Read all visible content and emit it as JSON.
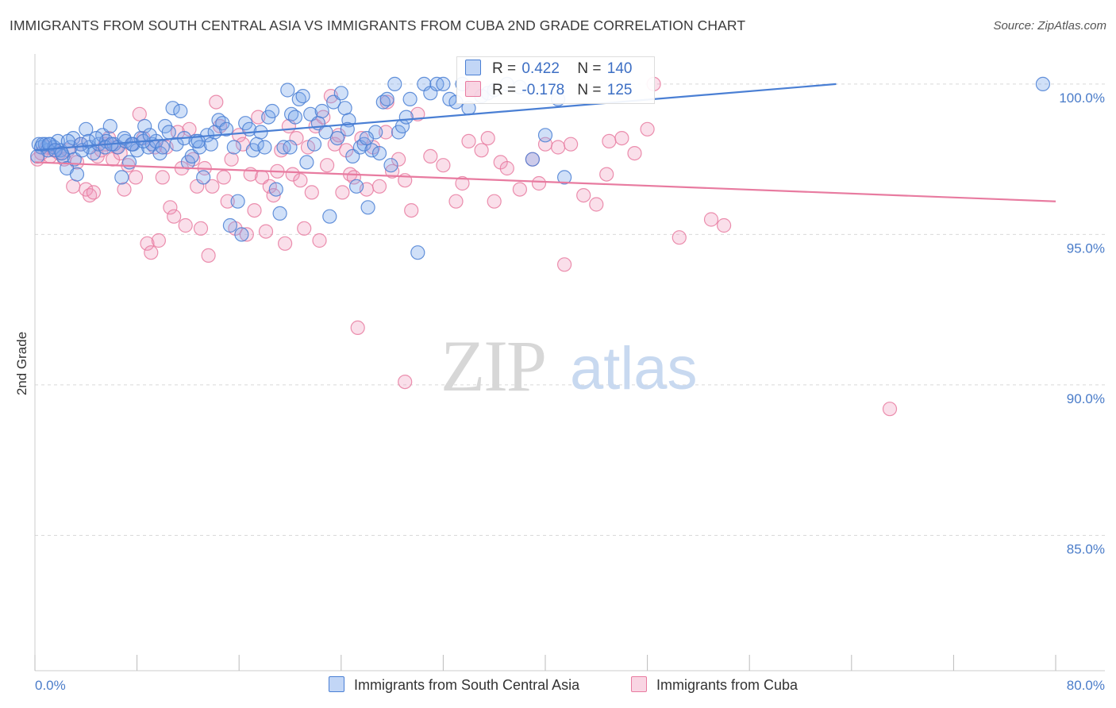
{
  "title": "IMMIGRANTS FROM SOUTH CENTRAL ASIA VS IMMIGRANTS FROM CUBA 2ND GRADE CORRELATION CHART",
  "source": "Source: ZipAtlas.com",
  "watermark": {
    "zip": "ZIP",
    "atlas": "atlas"
  },
  "colors": {
    "blue": "#4a7fd4",
    "blue_fill": "rgba(120,165,235,0.35)",
    "pink": "#e87ba0",
    "pink_fill": "rgba(240,150,185,0.30)",
    "tick_label": "#4a7cc9",
    "grid": "#d9d9d9"
  },
  "legend": {
    "rows": [
      {
        "r_label": "R = ",
        "r_value": "0.422",
        "n_label": "N = ",
        "n_value": "140"
      },
      {
        "r_label": "R = ",
        "r_value": "-0.178",
        "n_label": "N = ",
        "n_value": "125"
      }
    ]
  },
  "bottom_legend": [
    "Immigrants from South Central Asia",
    "Immigrants from Cuba"
  ],
  "chart_data": {
    "type": "scatter",
    "title": "IMMIGRANTS FROM SOUTH CENTRAL ASIA VS IMMIGRANTS FROM CUBA 2ND GRADE CORRELATION CHART",
    "xlabel": "",
    "ylabel": "2nd Grade",
    "xlim": [
      0,
      80
    ],
    "ylim": [
      80.5,
      101.0
    ],
    "x_tick_labels": [
      "0.0%",
      "80.0%"
    ],
    "y_ticks": [
      100,
      95,
      90,
      85
    ],
    "y_tick_labels": [
      "100.0%",
      "95.0%",
      "90.0%",
      "85.0%"
    ],
    "grid": true,
    "series": [
      {
        "name": "Immigrants from South Central Asia",
        "color": "#4a7fd4",
        "r": 0.422,
        "n": 140,
        "trend": [
          [
            0,
            97.8
          ],
          [
            62.8,
            100.0
          ]
        ],
        "points": [
          [
            0.3,
            98.0
          ],
          [
            0.5,
            97.9
          ],
          [
            0.8,
            98.0
          ],
          [
            1.0,
            97.8
          ],
          [
            1.2,
            98.0
          ],
          [
            1.5,
            97.9
          ],
          [
            1.8,
            98.1
          ],
          [
            2.0,
            97.8
          ],
          [
            2.2,
            97.6
          ],
          [
            2.5,
            97.2
          ],
          [
            2.8,
            97.9
          ],
          [
            3.0,
            98.2
          ],
          [
            3.3,
            97.0
          ],
          [
            3.6,
            98.0
          ],
          [
            4.0,
            98.5
          ],
          [
            4.3,
            97.9
          ],
          [
            4.6,
            97.7
          ],
          [
            5.0,
            98.0
          ],
          [
            5.3,
            98.3
          ],
          [
            5.6,
            98.1
          ],
          [
            5.9,
            98.6
          ],
          [
            6.2,
            98.0
          ],
          [
            6.5,
            97.9
          ],
          [
            6.8,
            96.9
          ],
          [
            7.1,
            98.1
          ],
          [
            7.4,
            97.4
          ],
          [
            7.7,
            98.0
          ],
          [
            8.0,
            97.8
          ],
          [
            8.3,
            98.2
          ],
          [
            8.6,
            98.6
          ],
          [
            8.9,
            97.9
          ],
          [
            9.2,
            98.0
          ],
          [
            9.5,
            98.1
          ],
          [
            9.8,
            97.7
          ],
          [
            10.2,
            98.6
          ],
          [
            10.5,
            98.4
          ],
          [
            10.8,
            99.2
          ],
          [
            11.1,
            98.0
          ],
          [
            11.4,
            99.1
          ],
          [
            11.7,
            98.2
          ],
          [
            12.0,
            97.4
          ],
          [
            12.3,
            97.6
          ],
          [
            12.6,
            98.1
          ],
          [
            12.9,
            97.9
          ],
          [
            13.2,
            96.9
          ],
          [
            13.5,
            98.3
          ],
          [
            13.8,
            98.0
          ],
          [
            14.1,
            98.4
          ],
          [
            14.4,
            98.8
          ],
          [
            14.7,
            98.7
          ],
          [
            15.0,
            98.5
          ],
          [
            15.3,
            95.3
          ],
          [
            15.6,
            97.9
          ],
          [
            15.9,
            96.1
          ],
          [
            16.2,
            95.0
          ],
          [
            16.5,
            98.7
          ],
          [
            16.8,
            98.5
          ],
          [
            17.1,
            97.8
          ],
          [
            17.4,
            98.0
          ],
          [
            17.7,
            98.4
          ],
          [
            18.0,
            97.9
          ],
          [
            18.3,
            98.9
          ],
          [
            18.6,
            99.1
          ],
          [
            18.9,
            96.5
          ],
          [
            19.2,
            95.7
          ],
          [
            19.5,
            97.9
          ],
          [
            19.8,
            99.8
          ],
          [
            20.1,
            99.0
          ],
          [
            20.4,
            98.9
          ],
          [
            20.7,
            99.5
          ],
          [
            21.0,
            99.6
          ],
          [
            21.3,
            97.4
          ],
          [
            21.6,
            99.0
          ],
          [
            21.9,
            98.0
          ],
          [
            22.2,
            98.7
          ],
          [
            22.5,
            99.1
          ],
          [
            22.8,
            98.4
          ],
          [
            23.1,
            95.6
          ],
          [
            23.4,
            99.4
          ],
          [
            23.7,
            98.2
          ],
          [
            24.0,
            99.7
          ],
          [
            24.3,
            99.2
          ],
          [
            24.6,
            98.8
          ],
          [
            24.9,
            97.6
          ],
          [
            25.2,
            96.6
          ],
          [
            25.5,
            97.9
          ],
          [
            25.8,
            98.0
          ],
          [
            26.1,
            95.9
          ],
          [
            26.4,
            97.8
          ],
          [
            26.7,
            98.4
          ],
          [
            27.0,
            97.7
          ],
          [
            27.3,
            99.4
          ],
          [
            27.6,
            99.5
          ],
          [
            27.9,
            97.3
          ],
          [
            28.2,
            100.0
          ],
          [
            28.5,
            98.4
          ],
          [
            28.8,
            98.6
          ],
          [
            29.1,
            98.9
          ],
          [
            29.4,
            99.5
          ],
          [
            30.0,
            94.4
          ],
          [
            30.5,
            100.0
          ],
          [
            31.0,
            99.7
          ],
          [
            31.5,
            100.0
          ],
          [
            32.0,
            100.0
          ],
          [
            32.5,
            99.5
          ],
          [
            33.0,
            99.4
          ],
          [
            33.5,
            100.0
          ],
          [
            34.0,
            99.2
          ],
          [
            35.0,
            99.6
          ],
          [
            35.5,
            99.7
          ],
          [
            36.0,
            99.8
          ],
          [
            37.0,
            100.0
          ],
          [
            38.0,
            99.9
          ],
          [
            39.0,
            97.5
          ],
          [
            40.0,
            98.3
          ],
          [
            41.0,
            99.5
          ],
          [
            41.5,
            96.9
          ],
          [
            0.2,
            97.6
          ],
          [
            0.6,
            98.0
          ],
          [
            1.1,
            98.0
          ],
          [
            1.6,
            97.8
          ],
          [
            2.1,
            97.7
          ],
          [
            2.6,
            98.1
          ],
          [
            3.1,
            97.5
          ],
          [
            3.7,
            97.8
          ],
          [
            4.2,
            98.1
          ],
          [
            4.8,
            98.2
          ],
          [
            5.5,
            97.9
          ],
          [
            6.0,
            98.0
          ],
          [
            7.0,
            98.2
          ],
          [
            7.6,
            98.0
          ],
          [
            8.5,
            98.1
          ],
          [
            9.0,
            98.3
          ],
          [
            79.0,
            100.0
          ],
          [
            20.0,
            97.9
          ],
          [
            26.0,
            98.2
          ],
          [
            24.5,
            98.5
          ],
          [
            10.0,
            97.9
          ],
          [
            12.8,
            98.1
          ]
        ]
      },
      {
        "name": "Immigrants from Cuba",
        "color": "#e87ba0",
        "r": -0.178,
        "n": 125,
        "trend": [
          [
            0,
            97.4
          ],
          [
            80,
            96.1
          ]
        ],
        "points": [
          [
            0.2,
            97.5
          ],
          [
            0.5,
            97.7
          ],
          [
            0.9,
            97.9
          ],
          [
            1.2,
            97.6
          ],
          [
            1.5,
            97.8
          ],
          [
            1.9,
            97.7
          ],
          [
            2.3,
            97.5
          ],
          [
            2.6,
            97.8
          ],
          [
            3.0,
            96.6
          ],
          [
            3.3,
            97.4
          ],
          [
            3.6,
            98.0
          ],
          [
            4.0,
            96.5
          ],
          [
            4.3,
            96.3
          ],
          [
            4.6,
            96.4
          ],
          [
            4.9,
            97.6
          ],
          [
            5.2,
            97.8
          ],
          [
            5.5,
            98.0
          ],
          [
            5.8,
            98.2
          ],
          [
            6.1,
            97.5
          ],
          [
            6.4,
            97.9
          ],
          [
            6.7,
            97.7
          ],
          [
            7.0,
            96.5
          ],
          [
            7.3,
            97.3
          ],
          [
            7.6,
            98.0
          ],
          [
            7.9,
            96.9
          ],
          [
            8.2,
            99.0
          ],
          [
            8.5,
            98.2
          ],
          [
            8.8,
            94.7
          ],
          [
            9.1,
            94.4
          ],
          [
            9.4,
            97.9
          ],
          [
            9.7,
            94.8
          ],
          [
            10.0,
            96.9
          ],
          [
            10.3,
            97.9
          ],
          [
            10.6,
            95.9
          ],
          [
            10.9,
            95.6
          ],
          [
            11.2,
            98.4
          ],
          [
            11.5,
            97.2
          ],
          [
            11.8,
            95.3
          ],
          [
            12.1,
            98.5
          ],
          [
            12.4,
            97.5
          ],
          [
            12.7,
            96.6
          ],
          [
            13.0,
            95.2
          ],
          [
            13.3,
            97.2
          ],
          [
            13.6,
            94.3
          ],
          [
            13.9,
            96.6
          ],
          [
            14.2,
            99.4
          ],
          [
            14.5,
            98.6
          ],
          [
            14.8,
            96.9
          ],
          [
            15.1,
            96.1
          ],
          [
            15.4,
            97.5
          ],
          [
            15.7,
            95.2
          ],
          [
            16.0,
            98.3
          ],
          [
            16.3,
            98.0
          ],
          [
            16.6,
            95.0
          ],
          [
            16.9,
            97.0
          ],
          [
            17.2,
            95.8
          ],
          [
            17.5,
            98.9
          ],
          [
            17.8,
            96.9
          ],
          [
            18.1,
            95.1
          ],
          [
            18.4,
            96.6
          ],
          [
            18.7,
            96.3
          ],
          [
            19.0,
            97.1
          ],
          [
            19.3,
            97.8
          ],
          [
            19.6,
            94.7
          ],
          [
            19.9,
            98.6
          ],
          [
            20.2,
            97.0
          ],
          [
            20.5,
            98.2
          ],
          [
            20.8,
            96.8
          ],
          [
            21.1,
            95.2
          ],
          [
            21.4,
            97.9
          ],
          [
            21.7,
            96.4
          ],
          [
            22.0,
            98.6
          ],
          [
            22.3,
            94.8
          ],
          [
            22.6,
            98.9
          ],
          [
            22.9,
            97.3
          ],
          [
            23.2,
            99.6
          ],
          [
            23.5,
            98.0
          ],
          [
            23.8,
            98.3
          ],
          [
            24.1,
            96.4
          ],
          [
            24.4,
            97.8
          ],
          [
            24.7,
            97.0
          ],
          [
            25.0,
            96.9
          ],
          [
            25.3,
            91.9
          ],
          [
            25.6,
            98.2
          ],
          [
            26.0,
            96.5
          ],
          [
            26.5,
            97.9
          ],
          [
            27.0,
            96.6
          ],
          [
            27.5,
            98.4
          ],
          [
            28.0,
            97.1
          ],
          [
            28.5,
            97.5
          ],
          [
            29.0,
            96.8
          ],
          [
            29.5,
            95.8
          ],
          [
            30.0,
            99.0
          ],
          [
            31.0,
            97.6
          ],
          [
            32.0,
            97.3
          ],
          [
            33.0,
            96.1
          ],
          [
            34.0,
            98.1
          ],
          [
            35.0,
            97.8
          ],
          [
            36.0,
            96.1
          ],
          [
            36.5,
            97.4
          ],
          [
            37.0,
            97.2
          ],
          [
            38.0,
            96.5
          ],
          [
            39.0,
            97.5
          ],
          [
            40.0,
            98.0
          ],
          [
            41.0,
            97.9
          ],
          [
            42.0,
            98.0
          ],
          [
            43.0,
            96.3
          ],
          [
            44.0,
            96.0
          ],
          [
            45.0,
            98.1
          ],
          [
            47.0,
            97.7
          ],
          [
            48.0,
            98.5
          ],
          [
            50.5,
            94.9
          ],
          [
            53.0,
            95.5
          ],
          [
            54.0,
            95.3
          ],
          [
            29.0,
            90.1
          ],
          [
            48.5,
            100.0
          ],
          [
            67.0,
            89.2
          ],
          [
            35.5,
            98.2
          ],
          [
            33.5,
            96.7
          ],
          [
            39.5,
            96.7
          ],
          [
            46.0,
            98.2
          ],
          [
            41.5,
            94.0
          ],
          [
            27.6,
            99.4
          ],
          [
            44.8,
            97.0
          ]
        ]
      }
    ]
  }
}
